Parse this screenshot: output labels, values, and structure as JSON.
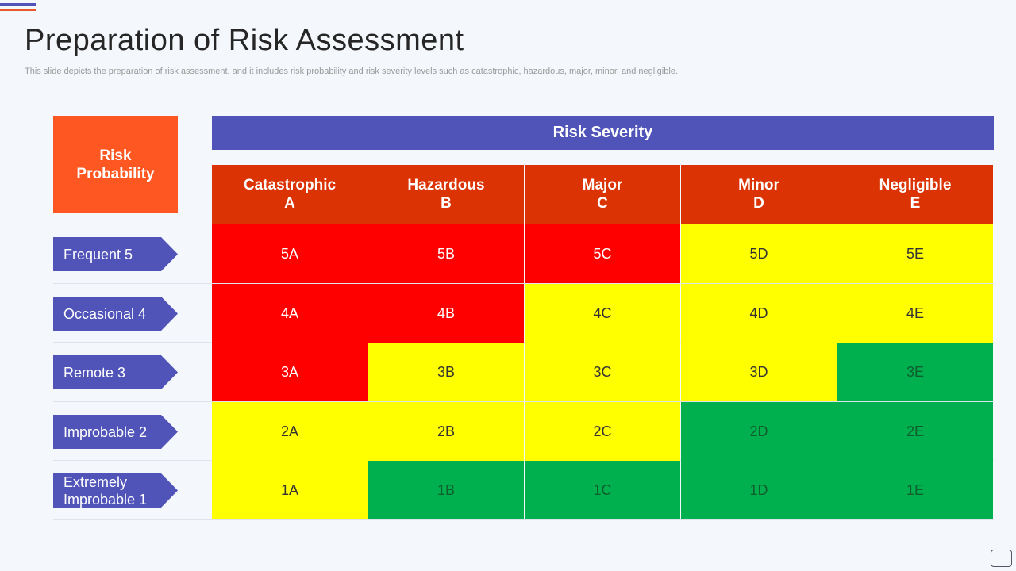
{
  "title": "Preparation of Risk Assessment",
  "subtitle": "This slide depicts the preparation of risk assessment, and it includes risk probability and risk severity levels such as catastrophic, hazardous, major, minor, and negligible.",
  "colors": {
    "probability_header": "#fe5722",
    "severity_header": "#5054b8",
    "column_header": "#db3303",
    "row_label": "#5054b8",
    "red": "#ff0000",
    "yellow": "#ffff00",
    "green": "#00b04f"
  },
  "probability_header": [
    "Risk",
    "Probability"
  ],
  "severity_header": "Risk Severity",
  "columns": [
    {
      "name": "Catastrophic",
      "code": "A"
    },
    {
      "name": "Hazardous",
      "code": "B"
    },
    {
      "name": "Major",
      "code": "C"
    },
    {
      "name": "Minor",
      "code": "D"
    },
    {
      "name": "Negligible",
      "code": "E"
    }
  ],
  "rows": [
    {
      "label": "Frequent 5",
      "cells": [
        {
          "text": "5A",
          "level": "red"
        },
        {
          "text": "5B",
          "level": "red"
        },
        {
          "text": "5C",
          "level": "red"
        },
        {
          "text": "5D",
          "level": "yellow"
        },
        {
          "text": "5E",
          "level": "yellow"
        }
      ]
    },
    {
      "label": "Occasional 4",
      "cells": [
        {
          "text": "4A",
          "level": "red"
        },
        {
          "text": "4B",
          "level": "red"
        },
        {
          "text": "4C",
          "level": "yellow"
        },
        {
          "text": "4D",
          "level": "yellow"
        },
        {
          "text": "4E",
          "level": "yellow"
        }
      ]
    },
    {
      "label": "Remote 3",
      "cells": [
        {
          "text": "3A",
          "level": "red"
        },
        {
          "text": "3B",
          "level": "yellow"
        },
        {
          "text": "3C",
          "level": "yellow"
        },
        {
          "text": "3D",
          "level": "yellow"
        },
        {
          "text": "3E",
          "level": "green"
        }
      ]
    },
    {
      "label": "Improbable 2",
      "cells": [
        {
          "text": "2A",
          "level": "yellow"
        },
        {
          "text": "2B",
          "level": "yellow"
        },
        {
          "text": "2C",
          "level": "yellow"
        },
        {
          "text": "2D",
          "level": "green"
        },
        {
          "text": "2E",
          "level": "green"
        }
      ]
    },
    {
      "label": "Extremely Improbable 1",
      "cells": [
        {
          "text": "1A",
          "level": "yellow"
        },
        {
          "text": "1B",
          "level": "green"
        },
        {
          "text": "1C",
          "level": "green"
        },
        {
          "text": "1D",
          "level": "green"
        },
        {
          "text": "1E",
          "level": "green"
        }
      ]
    }
  ]
}
